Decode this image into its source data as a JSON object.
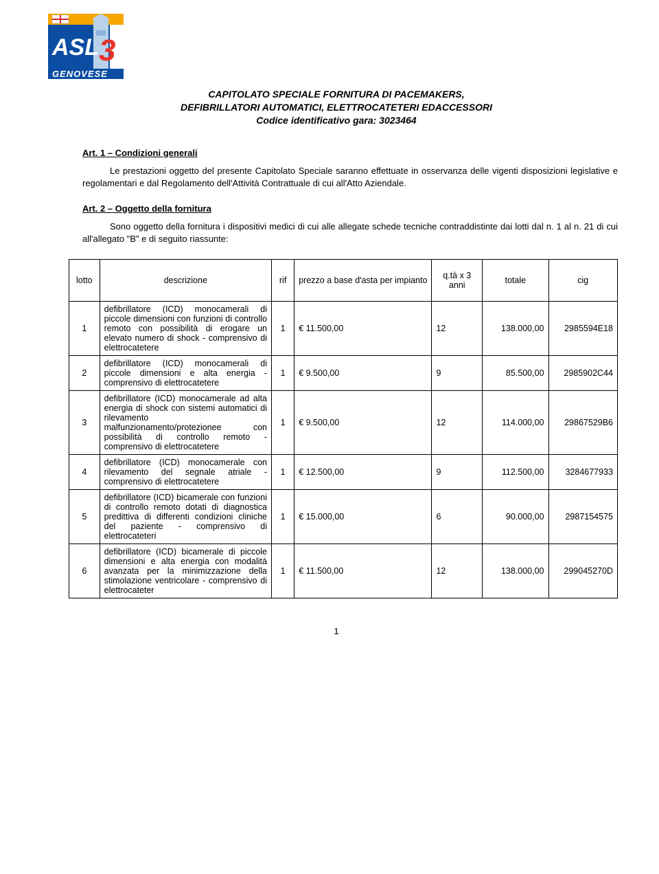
{
  "logo": {
    "top_band_color": "#f7a600",
    "text": "ASL",
    "num": "3",
    "sub": "GENOVESE",
    "bg_color": "#0b4da2",
    "num_color": "#e6342a",
    "flag": {
      "red": "#d7282f",
      "blue": "#1b4fa0",
      "white": "#ffffff"
    }
  },
  "title": {
    "line1": "CAPITOLATO SPECIALE FORNITURA DI PACEMAKERS,",
    "line2": "DEFIBRILLATORI AUTOMATICI, ELETTROCATETERI EDACCESSORI",
    "line3": "Codice identificativo gara: 3023464"
  },
  "art1": {
    "heading": "Art. 1 – Condizioni generali",
    "text": "Le prestazioni oggetto del presente Capitolato Speciale saranno effettuate in osservanza delle vigenti disposizioni legislative e regolamentari e dal Regolamento dell'Attività Contrattuale di cui all'Atto Aziendale."
  },
  "art2": {
    "heading": "Art. 2 – Oggetto  della fornitura",
    "text": "Sono oggetto della fornitura i dispositivi medici di cui alle allegate schede tecniche contraddistinte dai lotti dal n. 1 al n. 21 di cui all'allegato \"B\" e di seguito riassunte:"
  },
  "table": {
    "headers": {
      "lotto": "lotto",
      "descrizione": "descrizione",
      "rif": "rif",
      "prezzo": "prezzo a base d'asta per impianto",
      "qta": "q.tà x 3 anni",
      "totale": "totale",
      "cig": "cig"
    },
    "rows": [
      {
        "lotto": "1",
        "desc": "defibrillatore (ICD) monocamerali di piccole dimensioni con funzioni di controllo remoto con possibilità di erogare un elevato numero di shock - comprensivo di elettrocatetere",
        "rif": "1",
        "prezzo": "€ 11.500,00",
        "qta": "12",
        "totale": "138.000,00",
        "cig": "2985594E18"
      },
      {
        "lotto": "2",
        "desc": "defibrillatore (ICD) monocamerali di piccole dimensioni e alta energia - comprensivo di elettrocatetere",
        "rif": "1",
        "prezzo": "€ 9.500,00",
        "qta": "9",
        "totale": "85.500,00",
        "cig": "2985902C44"
      },
      {
        "lotto": "3",
        "desc": "defibrillatore (ICD) monocamerale ad alta energia di shock con sistemi automatici di rilevamento malfunzionamento/protezionee con possibilità di controllo remoto - comprensivo di elettrocatetere",
        "rif": "1",
        "prezzo": "€ 9.500,00",
        "qta": "12",
        "totale": "114.000,00",
        "cig": "29867529B6"
      },
      {
        "lotto": "4",
        "desc": "defibrillatore (ICD) monocamerale con rilevamento del segnale atriale - comprensivo di elettrocatetere",
        "rif": "1",
        "prezzo": "€ 12.500,00",
        "qta": "9",
        "totale": "112.500,00",
        "cig": "3284677933"
      },
      {
        "lotto": "5",
        "desc": "defibrillatore (ICD) bicamerale con funzioni di controllo remoto dotati di diagnostica predittiva di differenti condizioni cliniche del paziente - comprensivo di elettrocateteri",
        "rif": "1",
        "prezzo": "€ 15.000,00",
        "qta": "6",
        "totale": "90.000,00",
        "cig": "2987154575"
      },
      {
        "lotto": "6",
        "desc": "defibrillatore (ICD) bicamerale di piccole dimensioni e alta energia con modalità avanzata per la minimizzazione della stimolazione ventricolare - comprensivo di elettrocateter",
        "rif": "1",
        "prezzo": "€ 11.500,00",
        "qta": "12",
        "totale": "138.000,00",
        "cig": "299045270D"
      }
    ]
  },
  "page_number": "1"
}
